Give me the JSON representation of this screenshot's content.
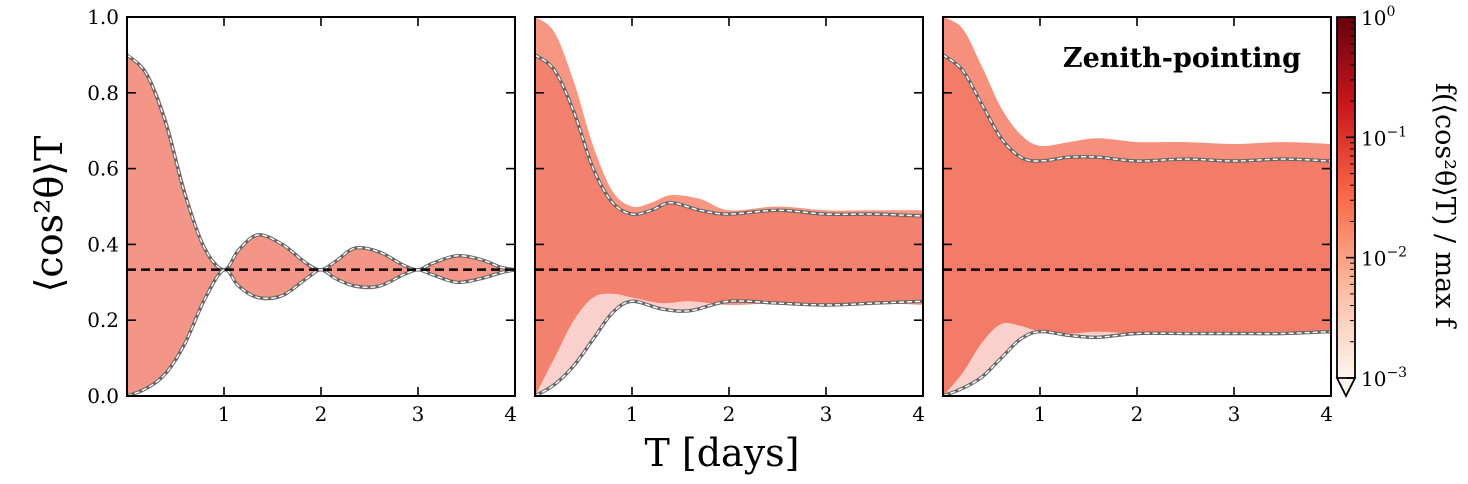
{
  "chart_data": {
    "type": "area",
    "shared_axes": {
      "xlabel": "T [days]",
      "ylabel": "⟨cos²θ⟩T",
      "xlim": [
        0,
        4
      ],
      "ylim": [
        0,
        1
      ],
      "xticks": [
        "1",
        "2",
        "3",
        "4"
      ],
      "yticks": [
        "0.0",
        "0.2",
        "0.4",
        "0.6",
        "0.8",
        "1.0"
      ],
      "reference_line_y": 0.3333
    },
    "colorbar": {
      "label": "f(⟨cos²θ⟩T) / max f",
      "scale": "log",
      "range": [
        0.001,
        1
      ],
      "tick_labels": [
        {
          "base": "10",
          "exp": "0",
          "value": 1
        },
        {
          "base": "10",
          "exp": "−1",
          "value": 0.1
        },
        {
          "base": "10",
          "exp": "−2",
          "value": 0.01
        },
        {
          "base": "10",
          "exp": "−3",
          "value": 0.001
        }
      ],
      "colormap": [
        "#fff5f0",
        "#fcbba1",
        "#fb6a4a",
        "#cb181d",
        "#67000d"
      ]
    },
    "panels": [
      {
        "annotation": "",
        "fill_color": "#f4735a",
        "fill_opacity": 0.55,
        "envelope_upper": [
          [
            0,
            0.9
          ],
          [
            0.2,
            0.86
          ],
          [
            0.4,
            0.74
          ],
          [
            0.6,
            0.55
          ],
          [
            0.8,
            0.4
          ],
          [
            1.0,
            0.333
          ],
          [
            1.15,
            0.39
          ],
          [
            1.35,
            0.43
          ],
          [
            1.6,
            0.4
          ],
          [
            1.85,
            0.35
          ],
          [
            2.0,
            0.333
          ],
          [
            2.15,
            0.36
          ],
          [
            2.35,
            0.39
          ],
          [
            2.6,
            0.38
          ],
          [
            2.85,
            0.34
          ],
          [
            3.0,
            0.333
          ],
          [
            3.15,
            0.35
          ],
          [
            3.4,
            0.37
          ],
          [
            3.65,
            0.36
          ],
          [
            3.85,
            0.34
          ],
          [
            4.0,
            0.333
          ]
        ],
        "envelope_lower": [
          [
            0,
            0.0
          ],
          [
            0.2,
            0.02
          ],
          [
            0.4,
            0.06
          ],
          [
            0.6,
            0.14
          ],
          [
            0.8,
            0.25
          ],
          [
            1.0,
            0.333
          ],
          [
            1.15,
            0.29
          ],
          [
            1.35,
            0.255
          ],
          [
            1.6,
            0.26
          ],
          [
            1.85,
            0.31
          ],
          [
            2.0,
            0.333
          ],
          [
            2.15,
            0.31
          ],
          [
            2.35,
            0.285
          ],
          [
            2.6,
            0.285
          ],
          [
            2.85,
            0.32
          ],
          [
            3.0,
            0.333
          ],
          [
            3.15,
            0.32
          ],
          [
            3.4,
            0.3
          ],
          [
            3.65,
            0.305
          ],
          [
            3.85,
            0.325
          ],
          [
            4.0,
            0.333
          ]
        ],
        "quantile_upper": [
          [
            0,
            0.9
          ],
          [
            0.2,
            0.85
          ],
          [
            0.4,
            0.72
          ],
          [
            0.6,
            0.53
          ],
          [
            0.8,
            0.39
          ],
          [
            1.0,
            0.333
          ],
          [
            1.15,
            0.385
          ],
          [
            1.35,
            0.425
          ],
          [
            1.6,
            0.4
          ],
          [
            1.85,
            0.35
          ],
          [
            2.0,
            0.333
          ],
          [
            2.15,
            0.355
          ],
          [
            2.35,
            0.39
          ],
          [
            2.6,
            0.38
          ],
          [
            2.85,
            0.345
          ],
          [
            3.0,
            0.333
          ],
          [
            3.15,
            0.35
          ],
          [
            3.4,
            0.37
          ],
          [
            3.65,
            0.36
          ],
          [
            3.85,
            0.34
          ],
          [
            4.0,
            0.333
          ]
        ],
        "quantile_lower": [
          [
            0,
            0.0
          ],
          [
            0.2,
            0.02
          ],
          [
            0.4,
            0.06
          ],
          [
            0.6,
            0.14
          ],
          [
            0.8,
            0.255
          ],
          [
            1.0,
            0.333
          ],
          [
            1.15,
            0.29
          ],
          [
            1.35,
            0.26
          ],
          [
            1.6,
            0.265
          ],
          [
            1.85,
            0.31
          ],
          [
            2.0,
            0.333
          ],
          [
            2.15,
            0.31
          ],
          [
            2.35,
            0.29
          ],
          [
            2.6,
            0.29
          ],
          [
            2.85,
            0.32
          ],
          [
            3.0,
            0.333
          ],
          [
            3.15,
            0.32
          ],
          [
            3.4,
            0.3
          ],
          [
            3.65,
            0.31
          ],
          [
            3.85,
            0.325
          ],
          [
            4.0,
            0.333
          ]
        ]
      },
      {
        "annotation": "",
        "fill_color": "#f4735a",
        "fill_opacity": 0.75,
        "envelope_upper": [
          [
            0,
            1.0
          ],
          [
            0.2,
            0.96
          ],
          [
            0.4,
            0.83
          ],
          [
            0.6,
            0.66
          ],
          [
            0.8,
            0.54
          ],
          [
            1.0,
            0.5
          ],
          [
            1.2,
            0.51
          ],
          [
            1.4,
            0.53
          ],
          [
            1.7,
            0.52
          ],
          [
            2.0,
            0.49
          ],
          [
            2.5,
            0.5
          ],
          [
            3.0,
            0.49
          ],
          [
            3.5,
            0.49
          ],
          [
            4.0,
            0.49
          ]
        ],
        "envelope_lower": [
          [
            0,
            0.0
          ],
          [
            0.2,
            0.1
          ],
          [
            0.4,
            0.2
          ],
          [
            0.6,
            0.26
          ],
          [
            0.8,
            0.27
          ],
          [
            1.0,
            0.26
          ],
          [
            1.3,
            0.245
          ],
          [
            1.6,
            0.25
          ],
          [
            2.0,
            0.24
          ],
          [
            2.5,
            0.245
          ],
          [
            3.0,
            0.24
          ],
          [
            3.5,
            0.245
          ],
          [
            4.0,
            0.24
          ]
        ],
        "quantile_upper": [
          [
            0,
            0.9
          ],
          [
            0.2,
            0.86
          ],
          [
            0.4,
            0.75
          ],
          [
            0.6,
            0.6
          ],
          [
            0.8,
            0.51
          ],
          [
            1.0,
            0.48
          ],
          [
            1.2,
            0.49
          ],
          [
            1.4,
            0.51
          ],
          [
            1.7,
            0.49
          ],
          [
            2.0,
            0.48
          ],
          [
            2.5,
            0.49
          ],
          [
            3.0,
            0.48
          ],
          [
            3.5,
            0.48
          ],
          [
            4.0,
            0.475
          ]
        ],
        "quantile_lower": [
          [
            0,
            0.0
          ],
          [
            0.2,
            0.03
          ],
          [
            0.4,
            0.08
          ],
          [
            0.6,
            0.15
          ],
          [
            0.8,
            0.22
          ],
          [
            1.0,
            0.25
          ],
          [
            1.3,
            0.23
          ],
          [
            1.6,
            0.225
          ],
          [
            2.0,
            0.25
          ],
          [
            2.5,
            0.245
          ],
          [
            3.0,
            0.24
          ],
          [
            3.5,
            0.245
          ],
          [
            4.0,
            0.25
          ]
        ]
      },
      {
        "annotation": "Zenith-pointing",
        "fill_color": "#f4735a",
        "fill_opacity": 0.8,
        "envelope_upper": [
          [
            0,
            1.0
          ],
          [
            0.2,
            0.97
          ],
          [
            0.4,
            0.87
          ],
          [
            0.6,
            0.76
          ],
          [
            0.8,
            0.69
          ],
          [
            1.0,
            0.66
          ],
          [
            1.3,
            0.67
          ],
          [
            1.6,
            0.68
          ],
          [
            2.0,
            0.67
          ],
          [
            2.5,
            0.67
          ],
          [
            3.0,
            0.665
          ],
          [
            3.5,
            0.67
          ],
          [
            4.0,
            0.665
          ]
        ],
        "envelope_lower": [
          [
            0,
            0.0
          ],
          [
            0.2,
            0.06
          ],
          [
            0.4,
            0.14
          ],
          [
            0.6,
            0.19
          ],
          [
            0.8,
            0.185
          ],
          [
            1.0,
            0.17
          ],
          [
            1.3,
            0.165
          ],
          [
            1.6,
            0.17
          ],
          [
            2.0,
            0.165
          ],
          [
            2.5,
            0.17
          ],
          [
            3.0,
            0.165
          ],
          [
            3.5,
            0.17
          ],
          [
            4.0,
            0.165
          ]
        ],
        "quantile_upper": [
          [
            0,
            0.9
          ],
          [
            0.2,
            0.86
          ],
          [
            0.4,
            0.77
          ],
          [
            0.6,
            0.68
          ],
          [
            0.8,
            0.63
          ],
          [
            1.0,
            0.62
          ],
          [
            1.3,
            0.63
          ],
          [
            1.6,
            0.63
          ],
          [
            2.0,
            0.62
          ],
          [
            2.5,
            0.625
          ],
          [
            3.0,
            0.62
          ],
          [
            3.5,
            0.625
          ],
          [
            4.0,
            0.62
          ]
        ],
        "quantile_lower": [
          [
            0,
            0.0
          ],
          [
            0.2,
            0.02
          ],
          [
            0.4,
            0.05
          ],
          [
            0.6,
            0.1
          ],
          [
            0.8,
            0.15
          ],
          [
            1.0,
            0.17
          ],
          [
            1.3,
            0.16
          ],
          [
            1.6,
            0.155
          ],
          [
            2.0,
            0.165
          ],
          [
            2.5,
            0.165
          ],
          [
            3.0,
            0.165
          ],
          [
            3.5,
            0.165
          ],
          [
            4.0,
            0.17
          ]
        ]
      }
    ]
  }
}
